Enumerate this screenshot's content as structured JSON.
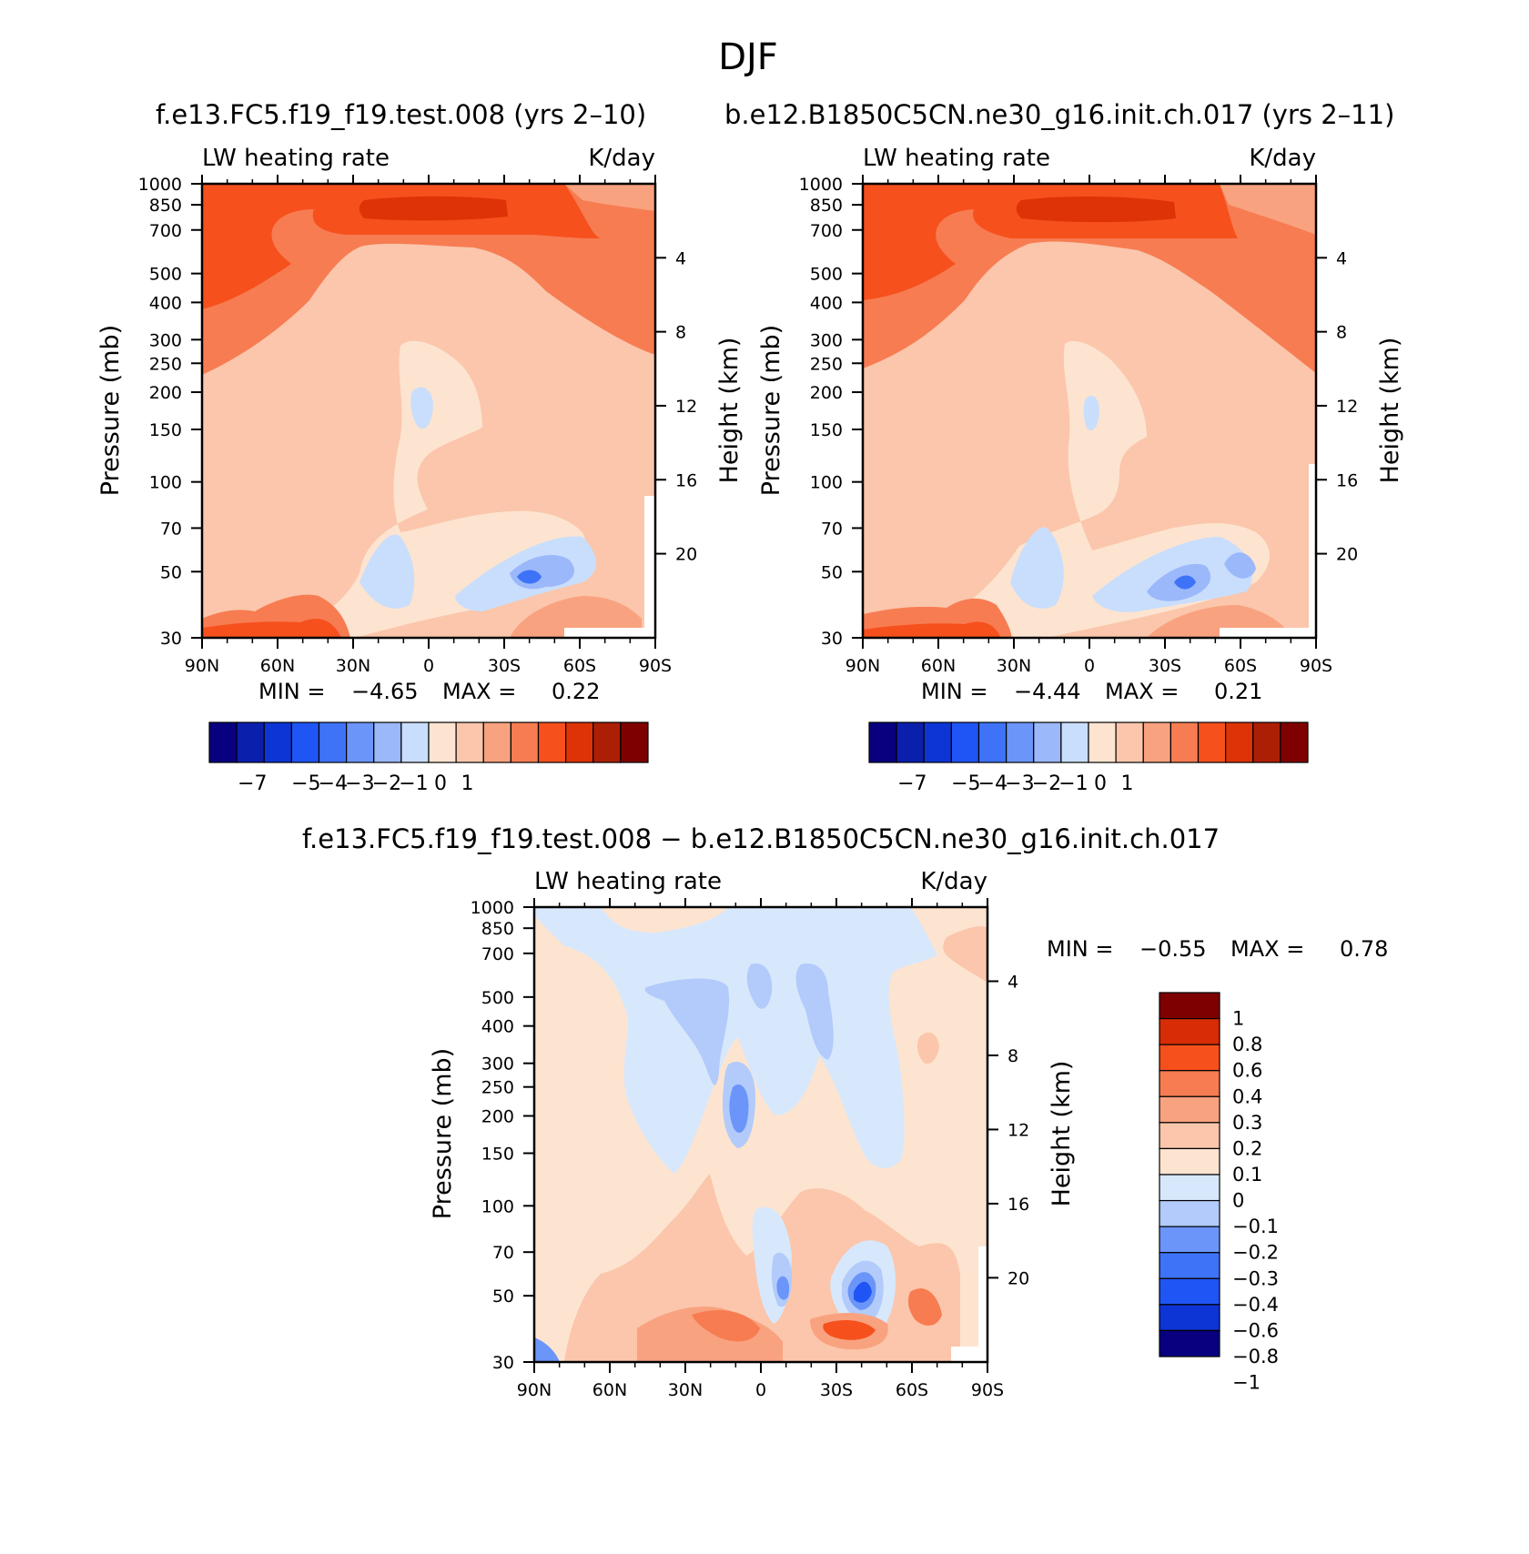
{
  "page": {
    "title": "DJF",
    "top_titles": [
      "f.e13.FC5.f19_f19.test.008 (yrs 2–10)",
      "b.e12.B1850C5CN.ne30_g16.init.ch.017 (yrs 2–11)"
    ],
    "diff_title": "f.e13.FC5.f19_f19.test.008 − b.e12.B1850C5CN.ne30_g16.init.ch.017"
  },
  "palette": {
    "blue_to_red_16": [
      "#08007f",
      "#0b1fad",
      "#0d35d6",
      "#1f55f5",
      "#3e73f7",
      "#6b95f8",
      "#9bb8fb",
      "#c9defc",
      "#fde4d0",
      "#fbc6ab",
      "#f9a27f",
      "#f77c52",
      "#f6501d",
      "#de3307",
      "#ad1f04",
      "#7f0000"
    ],
    "blue_to_red_14": [
      "#08007f",
      "#0d35d6",
      "#1f55f5",
      "#3e73f7",
      "#6b95f8",
      "#b2cbfb",
      "#d7e8fc",
      "#fde4d0",
      "#fbc6ab",
      "#f9a27f",
      "#f77c52",
      "#f6501d",
      "#d72c05",
      "#7f0000"
    ],
    "missing": "#ffffff"
  },
  "chart_data": [
    {
      "type": "heatmap",
      "id": "panel_a",
      "title": "f.e13.FC5.f19_f19.test.008 (yrs 2–10)",
      "left_string": "LW heating rate",
      "right_string": "K/day",
      "xlabel": "",
      "ylabel": "Pressure (mb)",
      "ylabel_right": "Height (km)",
      "x_range": [
        90,
        -90
      ],
      "x_ticks": [
        {
          "v": 90,
          "label": "90N"
        },
        {
          "v": 60,
          "label": "60N"
        },
        {
          "v": 30,
          "label": "30N"
        },
        {
          "v": 0,
          "label": "0"
        },
        {
          "v": -30,
          "label": "30S"
        },
        {
          "v": -60,
          "label": "60S"
        },
        {
          "v": -90,
          "label": "90S"
        }
      ],
      "y_scale": "log",
      "y_range": [
        1000,
        30
      ],
      "y_ticks": [
        30,
        50,
        70,
        100,
        150,
        200,
        250,
        300,
        400,
        500,
        700,
        850,
        1000
      ],
      "height_ticks_km": [
        20,
        16,
        12,
        8,
        4
      ],
      "min_label": "MIN =",
      "min_value": "−4.65",
      "max_label": "MAX =",
      "max_value": "0.22",
      "colorbar": {
        "orientation": "horizontal",
        "labels": [
          "−7",
          "−5",
          "−4",
          "−3",
          "−2",
          "−1",
          "0",
          "1"
        ]
      }
    },
    {
      "type": "heatmap",
      "id": "panel_b",
      "title": "b.e12.B1850C5CN.ne30_g16.init.ch.017 (yrs 2–11)",
      "left_string": "LW heating rate",
      "right_string": "K/day",
      "xlabel": "",
      "ylabel": "Pressure (mb)",
      "ylabel_right": "Height (km)",
      "x_range": [
        90,
        -90
      ],
      "x_ticks": [
        {
          "v": 90,
          "label": "90N"
        },
        {
          "v": 60,
          "label": "60N"
        },
        {
          "v": 30,
          "label": "30N"
        },
        {
          "v": 0,
          "label": "0"
        },
        {
          "v": -30,
          "label": "30S"
        },
        {
          "v": -60,
          "label": "60S"
        },
        {
          "v": -90,
          "label": "90S"
        }
      ],
      "y_scale": "log",
      "y_range": [
        1000,
        30
      ],
      "y_ticks": [
        30,
        50,
        70,
        100,
        150,
        200,
        250,
        300,
        400,
        500,
        700,
        850,
        1000
      ],
      "height_ticks_km": [
        20,
        16,
        12,
        8,
        4
      ],
      "min_label": "MIN =",
      "min_value": "−4.44",
      "max_label": "MAX =",
      "max_value": "0.21",
      "colorbar": {
        "orientation": "horizontal",
        "labels": [
          "−7",
          "−5",
          "−4",
          "−3",
          "−2",
          "−1",
          "0",
          "1"
        ]
      }
    },
    {
      "type": "heatmap",
      "id": "panel_diff",
      "title": "f.e13.FC5.f19_f19.test.008 − b.e12.B1850C5CN.ne30_g16.init.ch.017",
      "left_string": "LW heating rate",
      "right_string": "K/day",
      "xlabel": "",
      "ylabel": "Pressure (mb)",
      "ylabel_right": "Height (km)",
      "x_range": [
        90,
        -90
      ],
      "x_ticks": [
        {
          "v": 90,
          "label": "90N"
        },
        {
          "v": 60,
          "label": "60N"
        },
        {
          "v": 30,
          "label": "30N"
        },
        {
          "v": 0,
          "label": "0"
        },
        {
          "v": -30,
          "label": "30S"
        },
        {
          "v": -60,
          "label": "60S"
        },
        {
          "v": -90,
          "label": "90S"
        }
      ],
      "y_scale": "log",
      "y_range": [
        1000,
        30
      ],
      "y_ticks": [
        30,
        50,
        70,
        100,
        150,
        200,
        250,
        300,
        400,
        500,
        700,
        850,
        1000
      ],
      "height_ticks_km": [
        20,
        16,
        12,
        8,
        4
      ],
      "min_label": "MIN =",
      "min_value": "−0.55",
      "max_label": "MAX =",
      "max_value": "0.78",
      "colorbar": {
        "orientation": "vertical",
        "labels": [
          "1",
          "0.8",
          "0.6",
          "0.4",
          "0.3",
          "0.2",
          "0.1",
          "0",
          "−0.1",
          "−0.2",
          "−0.3",
          "−0.4",
          "−0.6",
          "−0.8",
          "−1"
        ]
      }
    }
  ]
}
